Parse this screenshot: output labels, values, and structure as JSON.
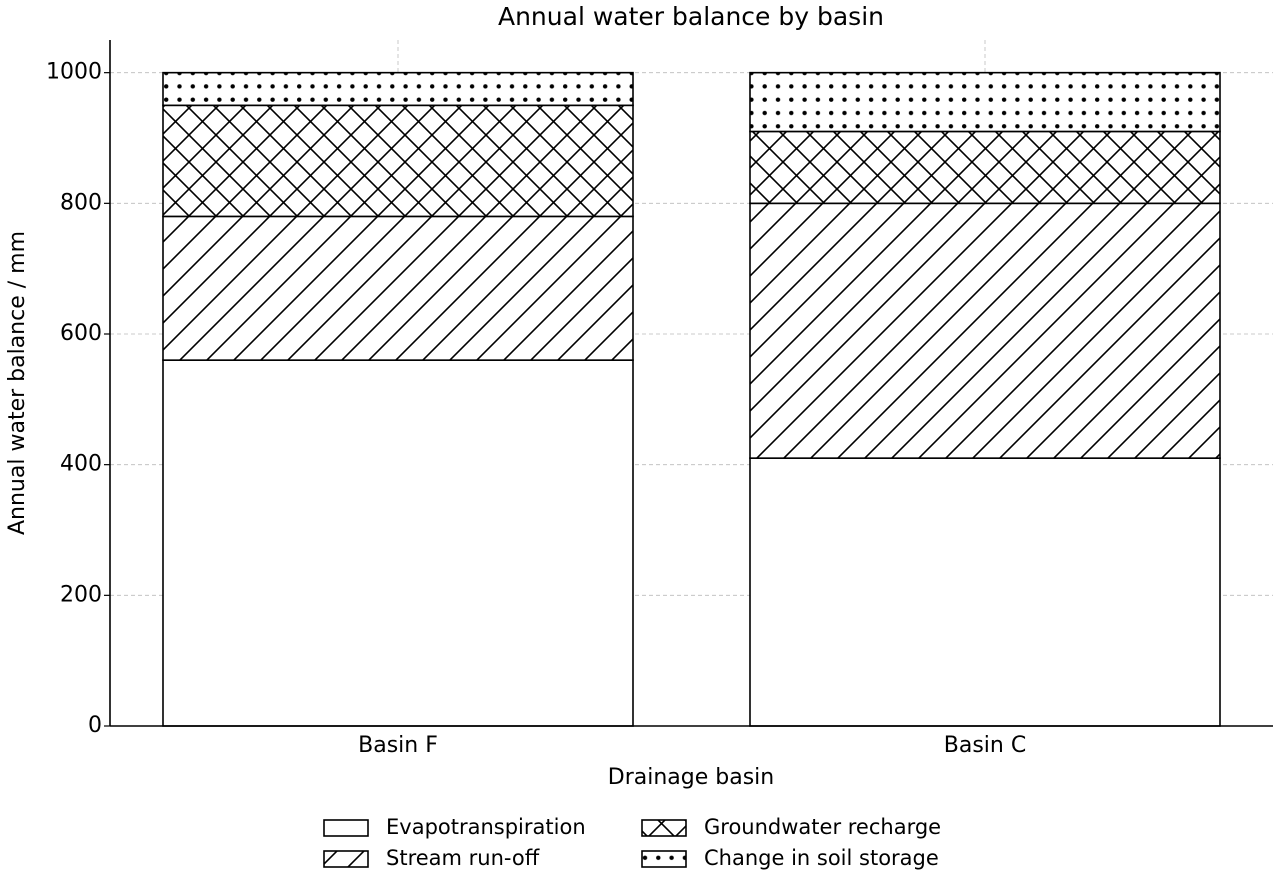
{
  "chart_data": {
    "type": "stacked-bar",
    "title": "Annual water balance by basin",
    "x_label": "Drainage basin",
    "y_label": "Annual water balance / mm",
    "categories": [
      "Basin F",
      "Basin C"
    ],
    "series": [
      {
        "name": "Evapotranspiration",
        "color": "#ffffff",
        "hatch": "none",
        "values": [
          560,
          410
        ]
      },
      {
        "name": "Stream run-off",
        "color": "#ffffff",
        "hatch": "diagonal",
        "values": [
          220,
          390
        ]
      },
      {
        "name": "Groundwater recharge",
        "color": "#ffffff",
        "hatch": "cross",
        "values": [
          170,
          110
        ]
      },
      {
        "name": "Change in soil storage",
        "color": "#ffffff",
        "hatch": "dots",
        "values": [
          50,
          90
        ]
      }
    ],
    "ylim": [
      0,
      1050
    ],
    "yticks": [
      0,
      200,
      400,
      600,
      800,
      1000
    ],
    "grid": true,
    "legend": "bottom"
  }
}
